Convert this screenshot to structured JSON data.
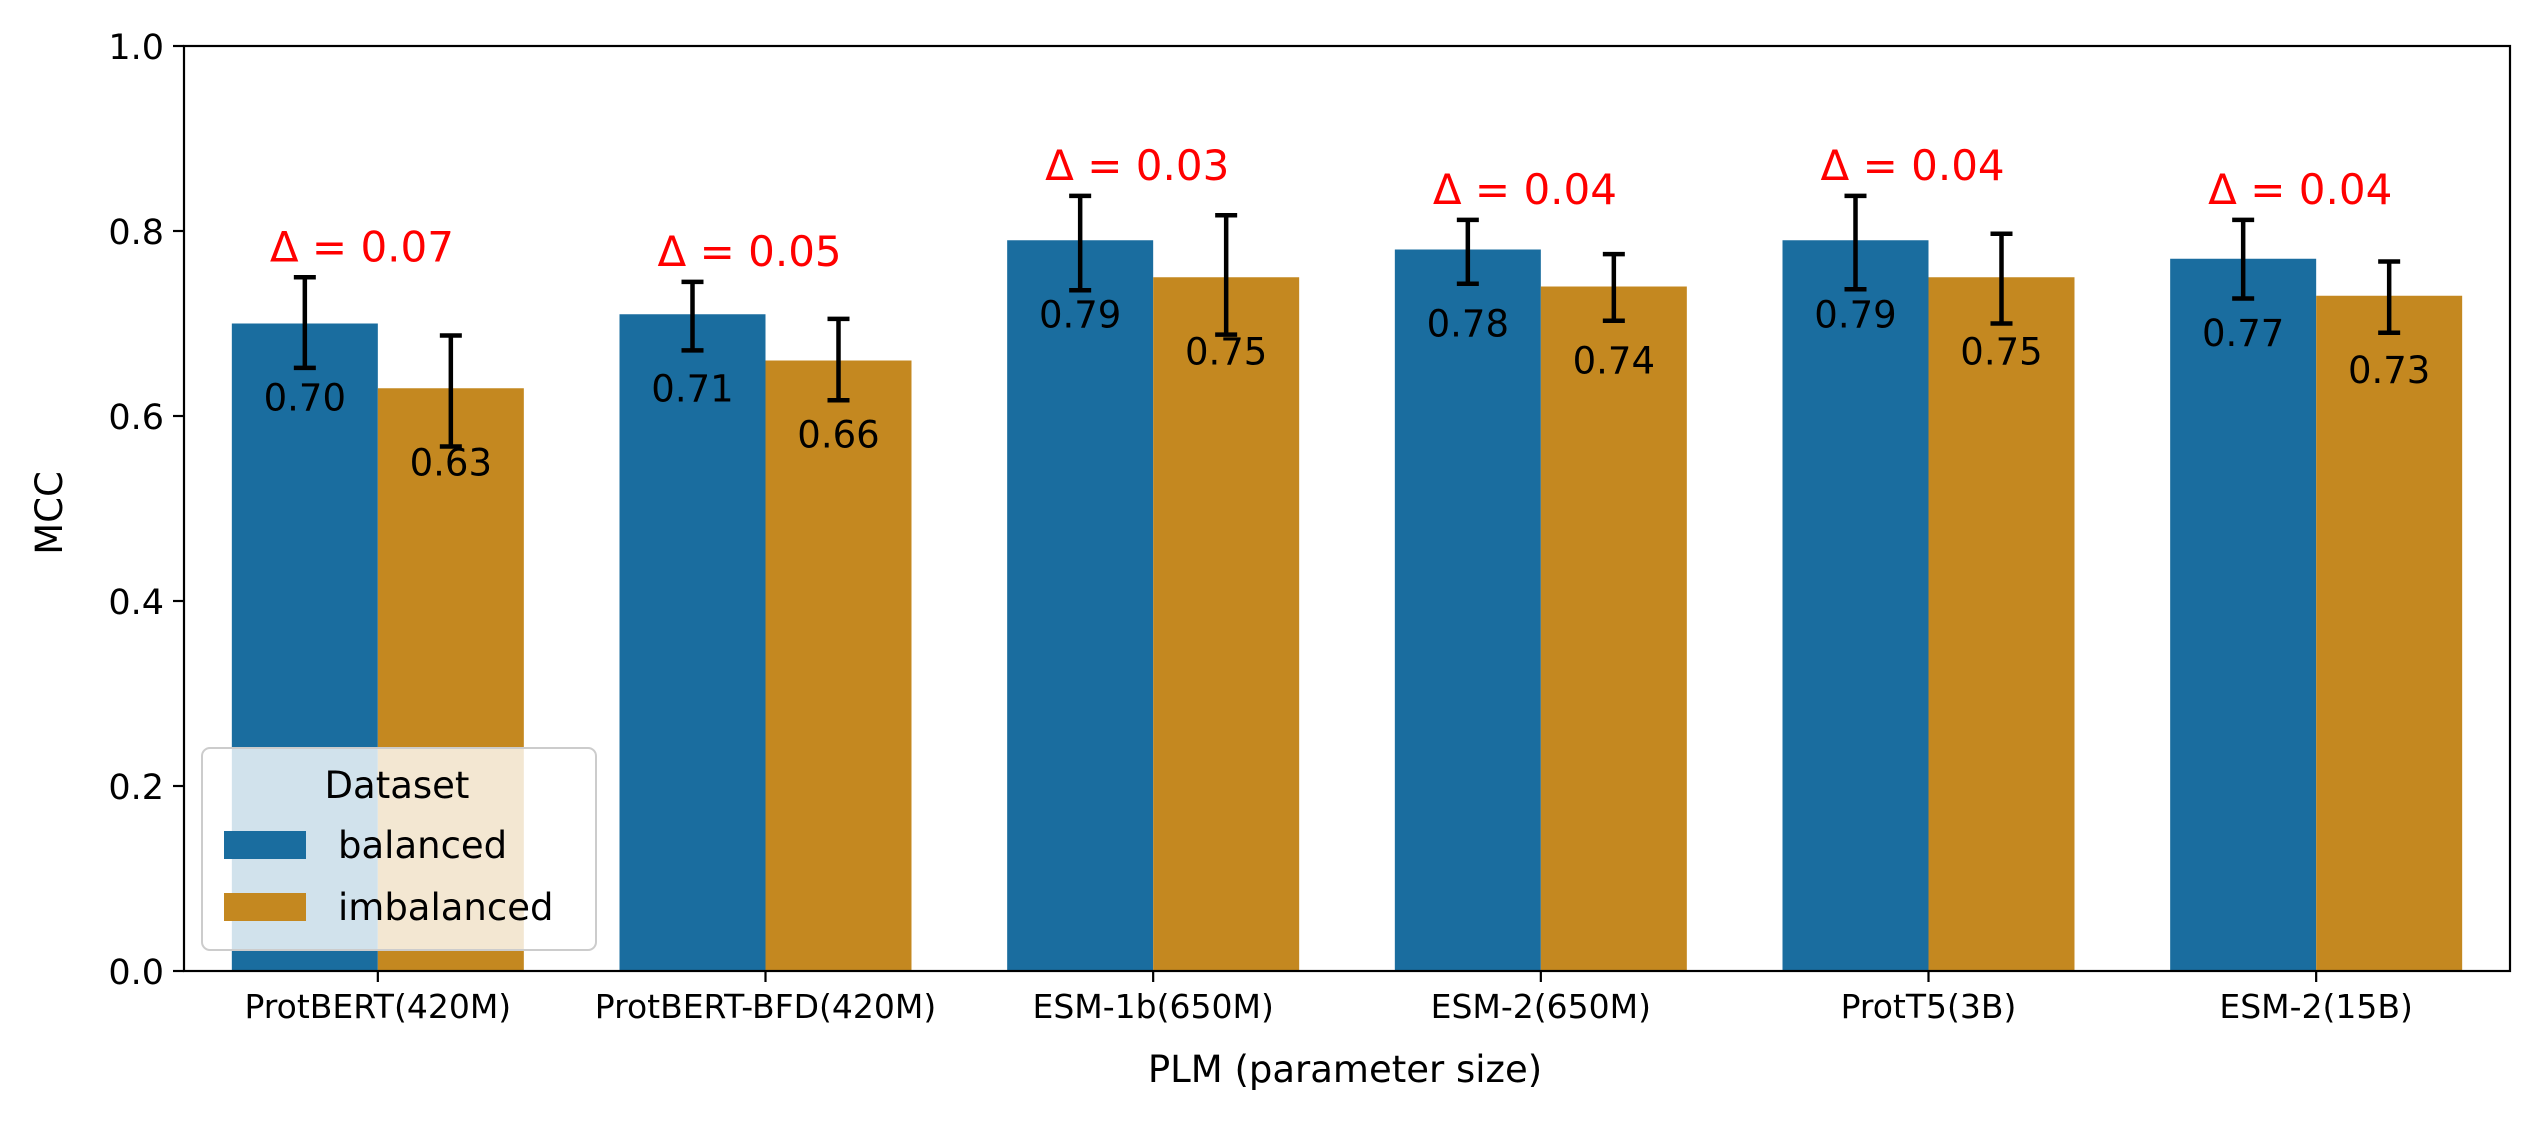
{
  "chart_data": {
    "type": "bar",
    "title": "",
    "xlabel": "PLM (parameter size)",
    "ylabel": "MCC",
    "ylim": [
      0.0,
      1.0
    ],
    "yticks": [
      "0.0",
      "0.2",
      "0.4",
      "0.6",
      "0.8",
      "1.0"
    ],
    "grid": false,
    "categories": [
      "ProtBERT(420M)",
      "ProtBERT-BFD(420M)",
      "ESM-1b(650M)",
      "ESM-2(650M)",
      "ProtT5(3B)",
      "ESM-2(15B)"
    ],
    "series": [
      {
        "name": "balanced",
        "color": "#1a6d9f",
        "values": [
          0.7,
          0.71,
          0.79,
          0.78,
          0.79,
          0.77
        ],
        "labels": [
          "0.70",
          "0.71",
          "0.79",
          "0.78",
          "0.79",
          "0.77"
        ],
        "error_low": [
          0.652,
          0.671,
          0.736,
          0.743,
          0.737,
          0.727
        ],
        "error_high": [
          0.75,
          0.745,
          0.838,
          0.812,
          0.838,
          0.812
        ]
      },
      {
        "name": "imbalanced",
        "color": "#c48820",
        "values": [
          0.63,
          0.66,
          0.75,
          0.74,
          0.75,
          0.73
        ],
        "labels": [
          "0.63",
          "0.66",
          "0.75",
          "0.74",
          "0.75",
          "0.73"
        ],
        "error_low": [
          0.567,
          0.617,
          0.688,
          0.703,
          0.7,
          0.69
        ],
        "error_high": [
          0.687,
          0.705,
          0.817,
          0.775,
          0.797,
          0.767
        ]
      }
    ],
    "deltas": [
      "Δ = 0.07",
      "Δ = 0.05",
      "Δ = 0.03",
      "Δ = 0.04",
      "Δ = 0.04",
      "Δ = 0.04"
    ],
    "delta_color": "#ff0000",
    "legend": {
      "title": "Dataset",
      "location": "lower-left",
      "entries": [
        "balanced",
        "imbalanced"
      ]
    }
  }
}
